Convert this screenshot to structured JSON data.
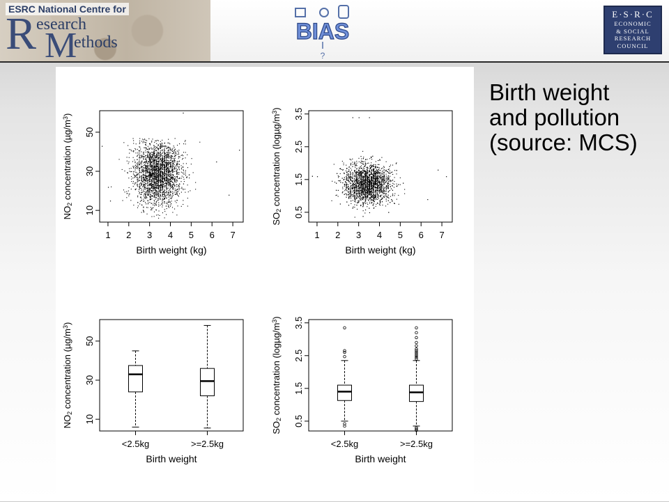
{
  "header": {
    "ncrm": {
      "banner": "ESRC National Centre for",
      "r_letter": "R",
      "research_text": "esearch",
      "m_letter": "M",
      "methods_text": "ethods"
    },
    "bias": {
      "text": "BIAS",
      "mark": "?"
    },
    "esrc": {
      "line1": "E·S·R·C",
      "line2": "ECONOMIC",
      "line3": "& SOCIAL",
      "line4": "RESEARCH",
      "line5": "COUNCIL"
    }
  },
  "slide": {
    "title": "Birth weight\nand pollution\n(source: MCS)"
  },
  "chart_data": [
    {
      "type": "scatter",
      "title": "",
      "xlabel": "Birth weight (kg)",
      "ylabel_main": "NO",
      "ylabel_sub": "2",
      "ylabel_rest": " concentration (µg/m",
      "ylabel_sup": "3",
      "ylabel_close": ")",
      "xlim": [
        0.6,
        7.5
      ],
      "ylim": [
        4,
        61
      ],
      "xticks": [
        1,
        2,
        3,
        4,
        5,
        6,
        7
      ],
      "yticks": [
        10,
        30,
        50
      ],
      "cloud": {
        "x_center": 3.35,
        "x_sd": 0.55,
        "y_center": 29,
        "y_sd": 8,
        "x_min": 0.7,
        "x_max": 7.3,
        "y_min": 6,
        "y_max": 47
      },
      "outliers": [
        [
          0.7,
          43
        ],
        [
          7.3,
          41
        ],
        [
          6.8,
          18
        ],
        [
          4.6,
          60
        ],
        [
          1.0,
          22
        ],
        [
          1.1,
          15
        ],
        [
          6.2,
          35
        ]
      ]
    },
    {
      "type": "scatter",
      "title": "",
      "xlabel": "Birth weight (kg)",
      "ylabel_main": "SO",
      "ylabel_sub": "2",
      "ylabel_rest": " concentration (logµg/m",
      "ylabel_sup": "3",
      "ylabel_close": ")",
      "xlim": [
        0.6,
        7.5
      ],
      "ylim": [
        0.2,
        3.6
      ],
      "xticks": [
        1,
        2,
        3,
        4,
        5,
        6,
        7
      ],
      "yticks": [
        0.5,
        1.5,
        2.5,
        3.5
      ],
      "cloud": {
        "x_center": 3.4,
        "x_sd": 0.55,
        "y_center": 1.38,
        "y_sd": 0.3,
        "x_min": 0.7,
        "x_max": 7.3,
        "y_min": 0.3,
        "y_max": 3.0
      },
      "outliers": [
        [
          3.0,
          3.4
        ],
        [
          3.5,
          3.4
        ],
        [
          2.7,
          3.4
        ],
        [
          7.2,
          1.6
        ],
        [
          6.8,
          1.8
        ],
        [
          1.0,
          1.6
        ],
        [
          6.3,
          0.9
        ]
      ]
    },
    {
      "type": "box",
      "title": "",
      "xlabel": "Birth weight",
      "ylabel_main": "NO",
      "ylabel_sub": "2",
      "ylabel_rest": " concentration (µg/m",
      "ylabel_sup": "3",
      "ylabel_close": ")",
      "categories": [
        "<2.5kg",
        ">=2.5kg"
      ],
      "ylim": [
        4,
        61
      ],
      "yticks": [
        10,
        30,
        50
      ],
      "boxes": [
        {
          "whisker_low": 6,
          "q1": 24,
          "median": 33,
          "q3": 37.5,
          "whisker_high": 45,
          "outliers": []
        },
        {
          "whisker_low": 5.5,
          "q1": 22,
          "median": 29.5,
          "q3": 36,
          "whisker_high": 58,
          "outliers": []
        }
      ]
    },
    {
      "type": "box",
      "title": "",
      "xlabel": "Birth weight",
      "ylabel_main": "SO",
      "ylabel_sub": "2",
      "ylabel_rest": " concentration (logµg/m",
      "ylabel_sup": "3",
      "ylabel_close": ")",
      "categories": [
        "<2.5kg",
        ">=2.5kg"
      ],
      "ylim": [
        0.2,
        3.6
      ],
      "yticks": [
        0.5,
        1.5,
        2.5,
        3.5
      ],
      "boxes": [
        {
          "whisker_low": 0.5,
          "q1": 1.13,
          "median": 1.4,
          "q3": 1.6,
          "whisker_high": 2.35,
          "outliers": [
            2.47,
            2.6,
            2.65,
            3.35,
            0.35,
            0.42
          ]
        },
        {
          "whisker_low": 0.35,
          "q1": 1.1,
          "median": 1.38,
          "q3": 1.6,
          "whisker_high": 2.35,
          "outliers": [
            2.4,
            2.45,
            2.5,
            2.55,
            2.6,
            2.65,
            2.7,
            2.8,
            2.9,
            3.05,
            3.2,
            3.35,
            0.3,
            0.26,
            0.22
          ]
        }
      ]
    }
  ]
}
